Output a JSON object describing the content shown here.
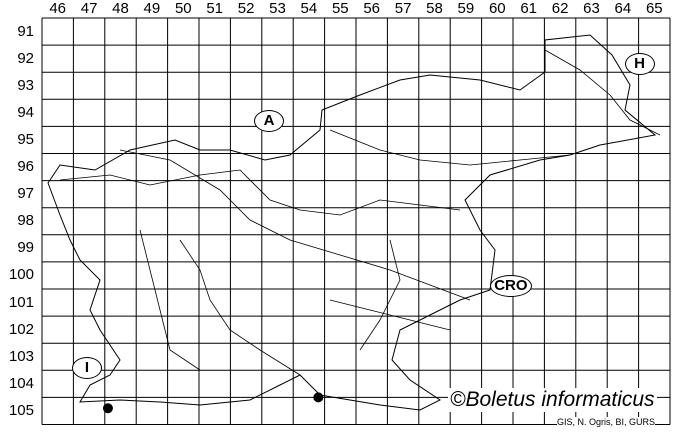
{
  "map": {
    "columns": [
      "46",
      "47",
      "48",
      "49",
      "50",
      "51",
      "52",
      "53",
      "54",
      "55",
      "56",
      "57",
      "58",
      "59",
      "60",
      "61",
      "62",
      "63",
      "64",
      "65"
    ],
    "rows": [
      "91",
      "92",
      "93",
      "94",
      "95",
      "96",
      "97",
      "98",
      "99",
      "100",
      "101",
      "102",
      "103",
      "104",
      "105"
    ],
    "countries": [
      {
        "label": "A",
        "col": 52.7,
        "row": 94.3
      },
      {
        "label": "H",
        "col": 64.5,
        "row": 92.2
      },
      {
        "label": "CRO",
        "col": 60.4,
        "row": 100.4
      },
      {
        "label": "I",
        "col": 46.9,
        "row": 103.4
      }
    ],
    "records": [
      {
        "col": 47.6,
        "row": 104.9
      },
      {
        "col": 54.3,
        "row": 104.5
      }
    ],
    "marker_color": "#000000",
    "copyright": "©Boletus informaticus",
    "credit": "GIS, N. Ogris, BI, GURS"
  }
}
